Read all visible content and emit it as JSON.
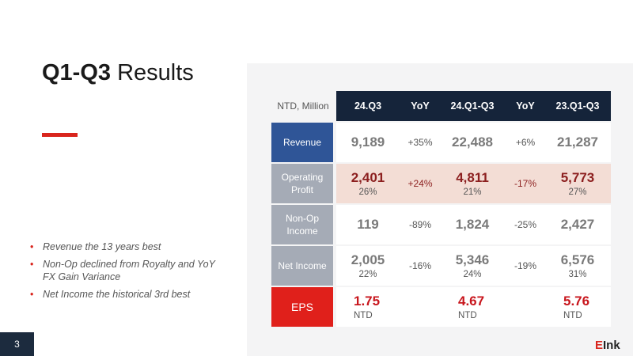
{
  "title": {
    "bold": "Q1-Q3",
    "rest": "Results"
  },
  "bullets": [
    "Revenue the 13 years best",
    "Non-Op declined from Royalty and YoY FX Gain Variance",
    "Net Income the historical 3rd best"
  ],
  "page_number": "3",
  "logo": {
    "mark": "E",
    "text": "Ink"
  },
  "table": {
    "unit": "NTD, Million",
    "columns": [
      "24.Q3",
      "YoY",
      "24.Q1-Q3",
      "YoY",
      "23.Q1-Q3"
    ],
    "rows": [
      {
        "label": "Revenue",
        "cells": [
          {
            "main": "9,189"
          },
          {
            "main": "+35%"
          },
          {
            "main": "22,488"
          },
          {
            "main": "+6%"
          },
          {
            "main": "21,287"
          }
        ]
      },
      {
        "label": "Operating Profit",
        "cells": [
          {
            "main": "2,401",
            "sub": "26%"
          },
          {
            "main": "+24%"
          },
          {
            "main": "4,811",
            "sub": "21%"
          },
          {
            "main": "-17%"
          },
          {
            "main": "5,773",
            "sub": "27%"
          }
        ]
      },
      {
        "label": "Non-Op Income",
        "cells": [
          {
            "main": "119"
          },
          {
            "main": "-89%"
          },
          {
            "main": "1,824"
          },
          {
            "main": "-25%"
          },
          {
            "main": "2,427"
          }
        ]
      },
      {
        "label": "Net Income",
        "cells": [
          {
            "main": "2,005",
            "sub": "22%"
          },
          {
            "main": "-16%"
          },
          {
            "main": "5,346",
            "sub": "24%"
          },
          {
            "main": "-19%"
          },
          {
            "main": "6,576",
            "sub": "31%"
          }
        ]
      },
      {
        "label": "EPS",
        "cells": [
          {
            "main": "1.75",
            "sub": "NTD"
          },
          {},
          {
            "main": "4.67",
            "sub": "NTD"
          },
          {},
          {
            "main": "5.76",
            "sub": "NTD"
          }
        ]
      }
    ]
  }
}
